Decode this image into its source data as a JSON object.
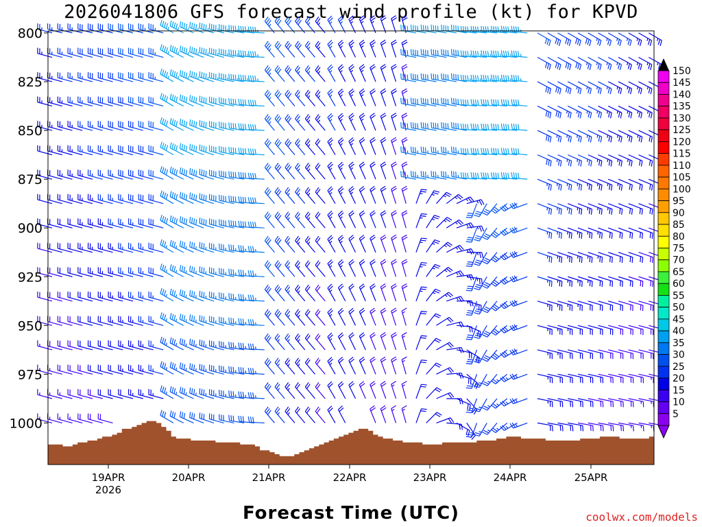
{
  "page": {
    "title": "2026041806 GFS forecast wind profile (kt) for KPVD",
    "credit": "coolwx.com/models"
  },
  "chart_data": {
    "type": "wind-barb-profile",
    "title": "2026041806 GFS forecast wind profile (kt) for KPVD",
    "xlabel": "Forecast Time (UTC)",
    "ylabel": "",
    "x_ticks": [
      {
        "label": "19APR",
        "sublabel": "2026"
      },
      {
        "label": "20APR",
        "sublabel": ""
      },
      {
        "label": "21APR",
        "sublabel": ""
      },
      {
        "label": "22APR",
        "sublabel": ""
      },
      {
        "label": "23APR",
        "sublabel": ""
      },
      {
        "label": "24APR",
        "sublabel": ""
      },
      {
        "label": "25APR",
        "sublabel": ""
      }
    ],
    "y_ticks": [
      "800",
      "825",
      "850",
      "875",
      "900",
      "925",
      "950",
      "975",
      "1000"
    ],
    "y_range_hpa": [
      800,
      1022
    ],
    "legend_levels_kt": [
      150,
      145,
      140,
      135,
      130,
      125,
      120,
      115,
      110,
      105,
      100,
      95,
      90,
      85,
      80,
      75,
      70,
      65,
      60,
      55,
      50,
      45,
      40,
      35,
      30,
      25,
      20,
      15,
      10,
      5
    ],
    "legend_colors": [
      "#f000f0",
      "#f000c8",
      "#f0008c",
      "#f00064",
      "#f0003c",
      "#f00014",
      "#ff0000",
      "#ff3c00",
      "#ff6400",
      "#ff7800",
      "#ff8c00",
      "#ffa000",
      "#ffc800",
      "#ffe000",
      "#ffff00",
      "#c8ff00",
      "#8cff00",
      "#3cf03c",
      "#14e014",
      "#00f0a0",
      "#00e8c8",
      "#00c8e6",
      "#00a0f0",
      "#0078f0",
      "#0050f0",
      "#0032f0",
      "#0000e6",
      "#3c00f0",
      "#6400f0",
      "#8c00f0"
    ],
    "terrain_color": "#a0522d",
    "surface_pressure_hpa": [
      1011,
      1011,
      1011,
      1012,
      1012,
      1011,
      1010,
      1010,
      1009,
      1009,
      1008,
      1007,
      1007,
      1006,
      1005,
      1003,
      1003,
      1002,
      1001,
      1000,
      999,
      999,
      1000,
      1002,
      1004,
      1007,
      1008,
      1008,
      1008,
      1009,
      1009,
      1009,
      1009,
      1009,
      1010,
      1010,
      1010,
      1010,
      1010,
      1011,
      1011,
      1011,
      1012,
      1014,
      1014,
      1015,
      1016,
      1017,
      1017,
      1017,
      1016,
      1015,
      1014,
      1013,
      1012,
      1011,
      1010,
      1009,
      1008,
      1007,
      1006,
      1005,
      1004,
      1003,
      1003,
      1004,
      1006,
      1007,
      1008,
      1008,
      1009,
      1009,
      1010,
      1010,
      1010,
      1010,
      1011,
      1011,
      1011,
      1011,
      1010,
      1010,
      1010,
      1010,
      1010,
      1010,
      1010,
      1009,
      1009,
      1009,
      1009,
      1008,
      1008,
      1007,
      1007,
      1007,
      1008,
      1008,
      1008,
      1008,
      1008,
      1009,
      1009,
      1009,
      1009,
      1009,
      1009,
      1009,
      1008,
      1008,
      1008,
      1008,
      1007,
      1007,
      1007,
      1007,
      1008,
      1008,
      1008,
      1008,
      1008,
      1008,
      1007
    ],
    "wind_field_description": "GFS barbs every 3 h: west to northwest winds 15-50 kt early, backing southerly then easterly/northerly after 23APR"
  }
}
